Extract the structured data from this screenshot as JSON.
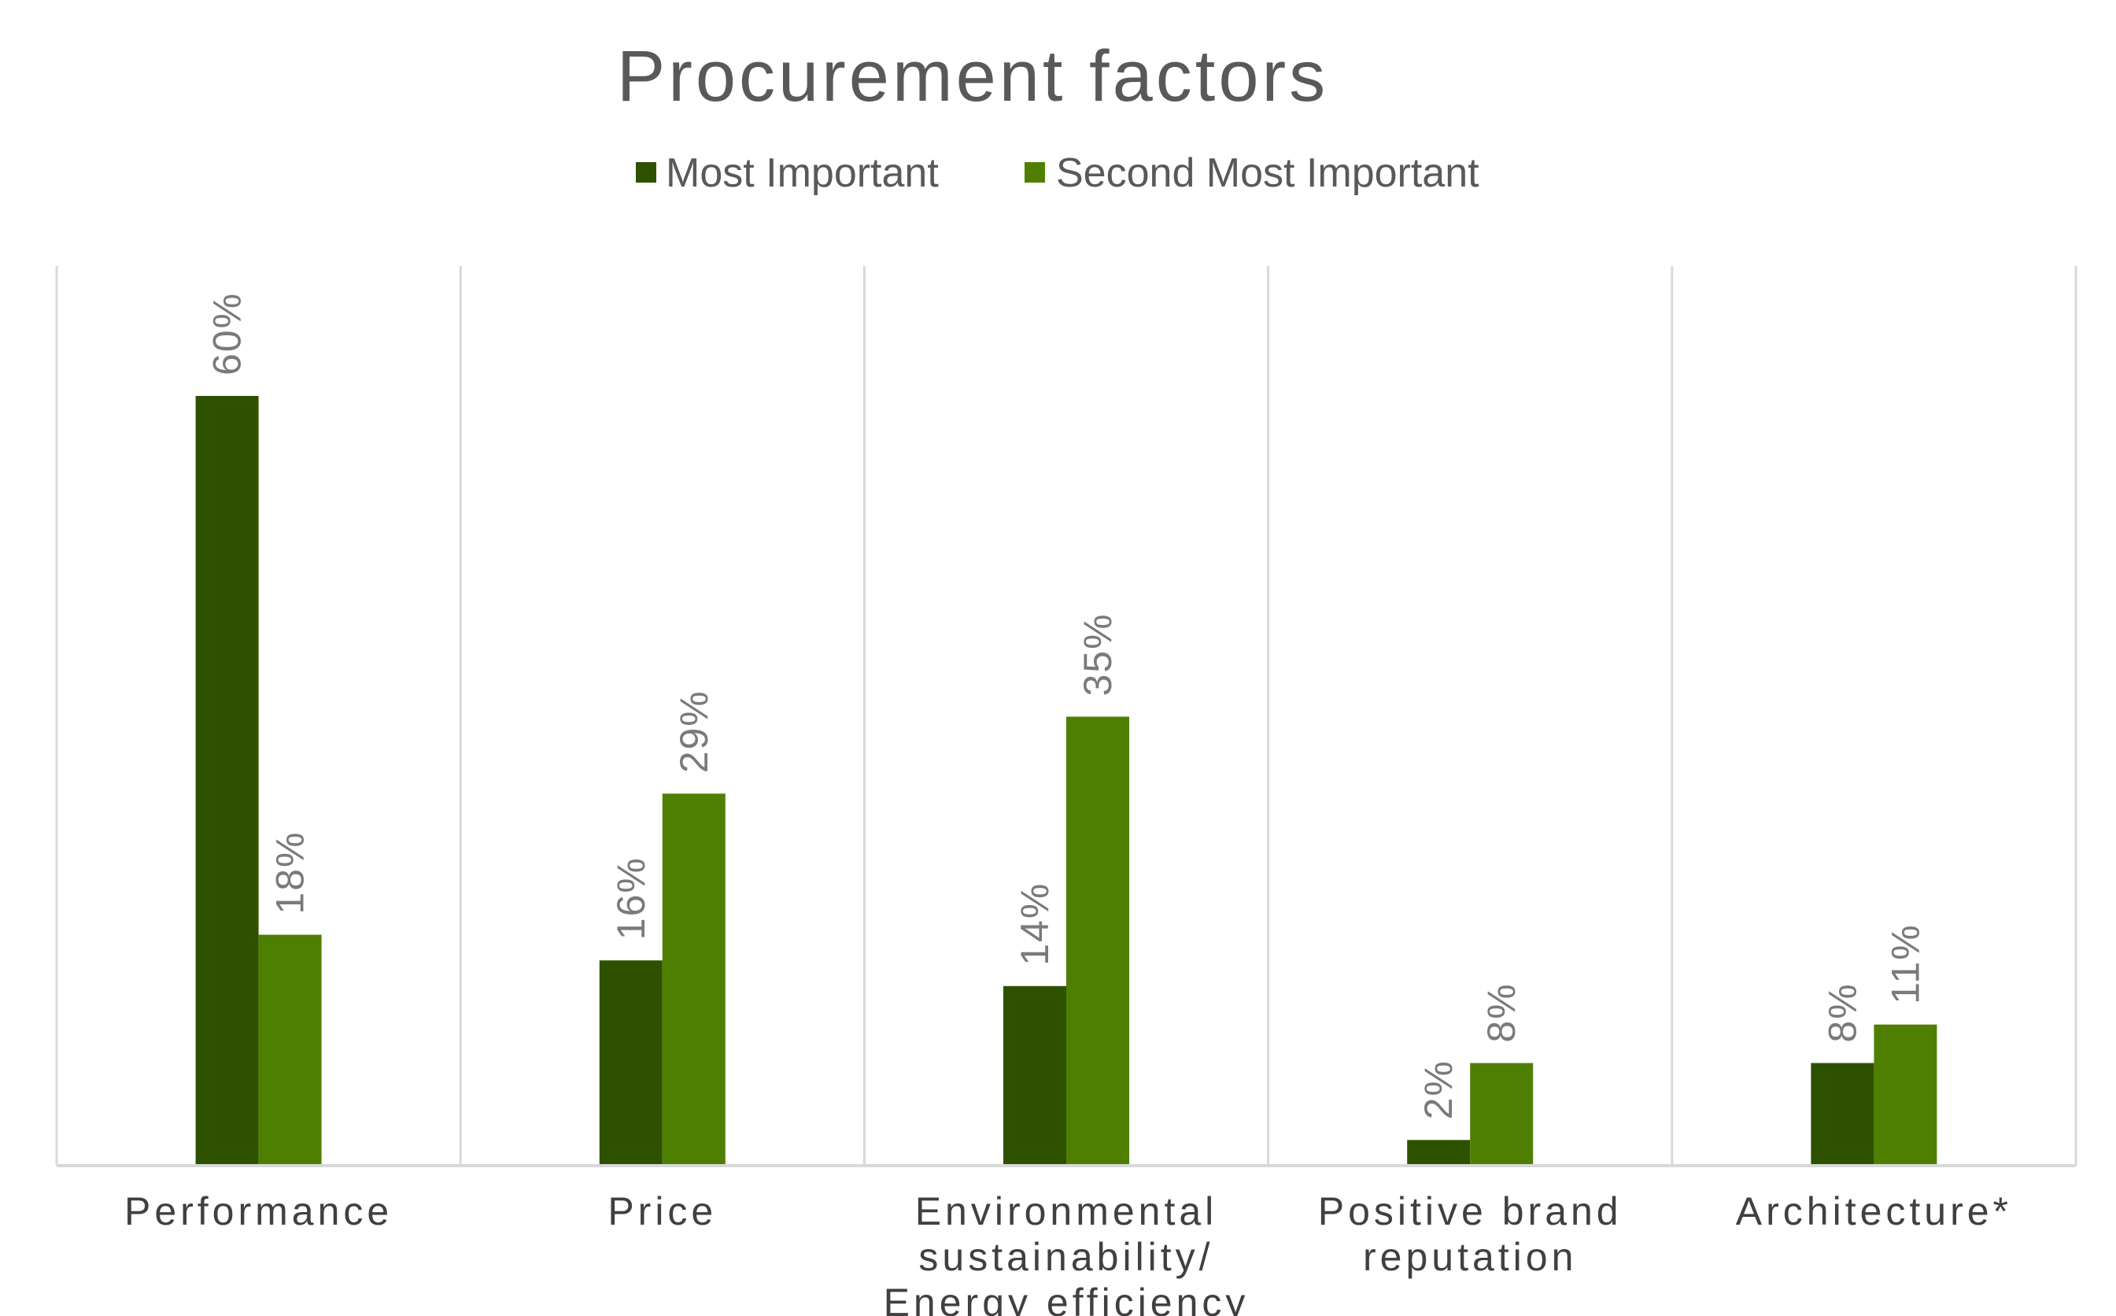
{
  "chart_data": {
    "type": "bar",
    "title": "Procurement factors",
    "categories": [
      [
        "Performance"
      ],
      [
        "Price"
      ],
      [
        "Environmental",
        "sustainability/",
        "Energy efficiency"
      ],
      [
        "Positive brand",
        "reputation"
      ],
      [
        "Architecture*"
      ]
    ],
    "series": [
      {
        "name": "Most Important",
        "color": "#2e5100",
        "values": [
          60,
          16,
          14,
          2,
          8
        ],
        "labels": [
          "60%",
          "16%",
          "14%",
          "2%",
          "8%"
        ]
      },
      {
        "name": "Second Most Important",
        "color": "#4f7f00",
        "values": [
          18,
          29,
          35,
          8,
          11
        ],
        "labels": [
          "18%",
          "29%",
          "35%",
          "8%",
          "11%"
        ]
      }
    ],
    "ylim": [
      0,
      70
    ],
    "value_format": "percent",
    "legend_position": "top",
    "grid": "vertical category separators"
  }
}
